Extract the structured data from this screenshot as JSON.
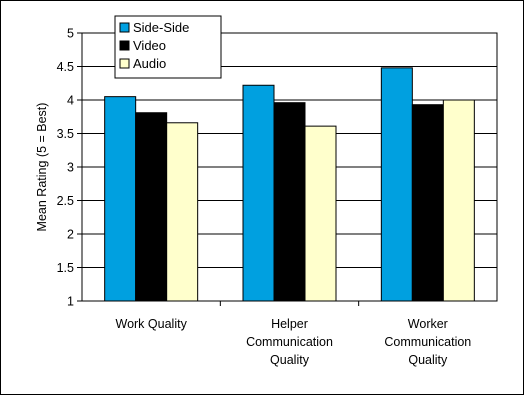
{
  "chart_data": {
    "type": "bar",
    "title": "",
    "xlabel": "",
    "ylabel": "Mean Rating (5 = Best)",
    "ylim": [
      1,
      5
    ],
    "yticks": [
      "1",
      "1.5",
      "2",
      "2.5",
      "3",
      "3.5",
      "4",
      "4.5",
      "5"
    ],
    "grid": true,
    "legend_position": "top-left",
    "categories": [
      [
        "Work Quality"
      ],
      [
        "Helper",
        "Communication",
        "Quality"
      ],
      [
        "Worker",
        "Communication",
        "Quality"
      ]
    ],
    "series": [
      {
        "name": "Side-Side",
        "color": "#00a0e0",
        "values": [
          4.05,
          4.22,
          4.48
        ]
      },
      {
        "name": "Video",
        "color": "#000000",
        "values": [
          3.81,
          3.96,
          3.93
        ]
      },
      {
        "name": "Audio",
        "color": "#ffffcc",
        "values": [
          3.66,
          3.61,
          4.0
        ]
      }
    ]
  }
}
